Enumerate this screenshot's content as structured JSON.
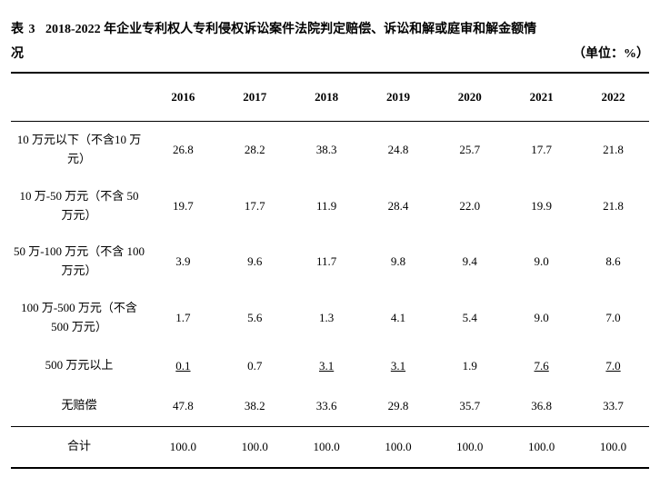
{
  "title": {
    "prefix": "表 3",
    "line1": "2018-2022 年企业专利权人专利侵权诉讼案件法院判定赔偿、诉讼和解或庭审和解金额情",
    "line2": "况",
    "unit": "（单位：%）"
  },
  "columns": [
    "2016",
    "2017",
    "2018",
    "2019",
    "2020",
    "2021",
    "2022"
  ],
  "rows": [
    {
      "label": "10 万元以下（不含10 万元）",
      "vals": [
        "26.8",
        "28.2",
        "38.3",
        "24.8",
        "25.7",
        "17.7",
        "21.8"
      ],
      "ul": [
        false,
        false,
        false,
        false,
        false,
        false,
        false
      ]
    },
    {
      "label": "10 万-50 万元（不含 50 万元）",
      "vals": [
        "19.7",
        "17.7",
        "11.9",
        "28.4",
        "22.0",
        "19.9",
        "21.8"
      ],
      "ul": [
        false,
        false,
        false,
        false,
        false,
        false,
        false
      ]
    },
    {
      "label": "50 万-100 万元（不含 100 万元）",
      "vals": [
        "3.9",
        "9.6",
        "11.7",
        "9.8",
        "9.4",
        "9.0",
        "8.6"
      ],
      "ul": [
        false,
        false,
        false,
        false,
        false,
        false,
        false
      ]
    },
    {
      "label": "100 万-500 万元（不含 500 万元）",
      "vals": [
        "1.7",
        "5.6",
        "1.3",
        "4.1",
        "5.4",
        "9.0",
        "7.0"
      ],
      "ul": [
        false,
        false,
        false,
        false,
        false,
        false,
        false
      ]
    },
    {
      "label": "500 万元以上",
      "vals": [
        "0.1",
        "0.7",
        "3.1",
        "3.1",
        "1.9",
        "7.6",
        "7.0"
      ],
      "ul": [
        true,
        false,
        true,
        true,
        false,
        true,
        true
      ]
    },
    {
      "label": "无赔偿",
      "vals": [
        "47.8",
        "38.2",
        "33.6",
        "29.8",
        "35.7",
        "36.8",
        "33.7"
      ],
      "ul": [
        false,
        false,
        false,
        false,
        false,
        false,
        false
      ]
    }
  ],
  "total": {
    "label": "合计",
    "vals": [
      "100.0",
      "100.0",
      "100.0",
      "100.0",
      "100.0",
      "100.0",
      "100.0"
    ]
  }
}
